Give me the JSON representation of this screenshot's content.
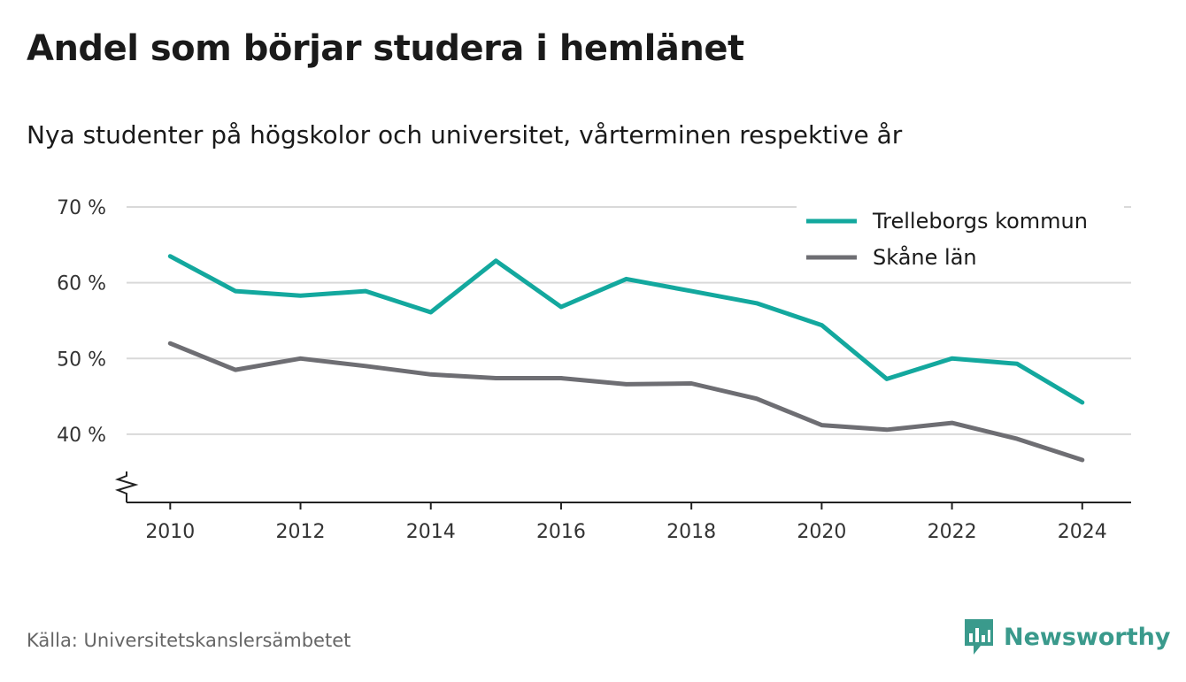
{
  "title": "Andel som börjar studera i hemlänet",
  "subtitle": "Nya studenter på högskolor och universitet, vårterminen respektive år",
  "source": "Källa: Universitetskanslersämbetet",
  "brand": {
    "name": "Newsworthy",
    "icon": "newsworthy-logo-icon",
    "color": "#3a9a8c"
  },
  "chart_data": {
    "type": "line",
    "x": [
      2010,
      2011,
      2012,
      2013,
      2014,
      2015,
      2016,
      2017,
      2018,
      2019,
      2020,
      2021,
      2022,
      2023,
      2024
    ],
    "x_ticks": [
      2010,
      2012,
      2014,
      2016,
      2018,
      2020,
      2022,
      2024
    ],
    "x_tick_labels": [
      "2010",
      "2012",
      "2014",
      "2016",
      "2018",
      "2020",
      "2022",
      "2024"
    ],
    "y_ticks": [
      40,
      50,
      60,
      70
    ],
    "y_tick_labels": [
      "40 %",
      "50 %",
      "60 %",
      "70 %"
    ],
    "ylim": [
      31,
      70
    ],
    "y_axis_break": true,
    "grid": true,
    "legend_position": "top-right",
    "series": [
      {
        "name": "Trelleborgs kommun",
        "color": "#13a89e",
        "values": [
          63.5,
          58.9,
          58.3,
          58.9,
          56.1,
          62.9,
          56.8,
          60.5,
          58.9,
          57.3,
          54.4,
          47.3,
          50.0,
          49.3,
          44.2
        ]
      },
      {
        "name": "Skåne län",
        "color": "#6e6e73",
        "values": [
          52.0,
          48.5,
          50.0,
          49.0,
          47.9,
          47.4,
          47.4,
          46.6,
          46.7,
          44.7,
          41.2,
          40.6,
          41.5,
          39.4,
          36.6
        ]
      }
    ]
  }
}
